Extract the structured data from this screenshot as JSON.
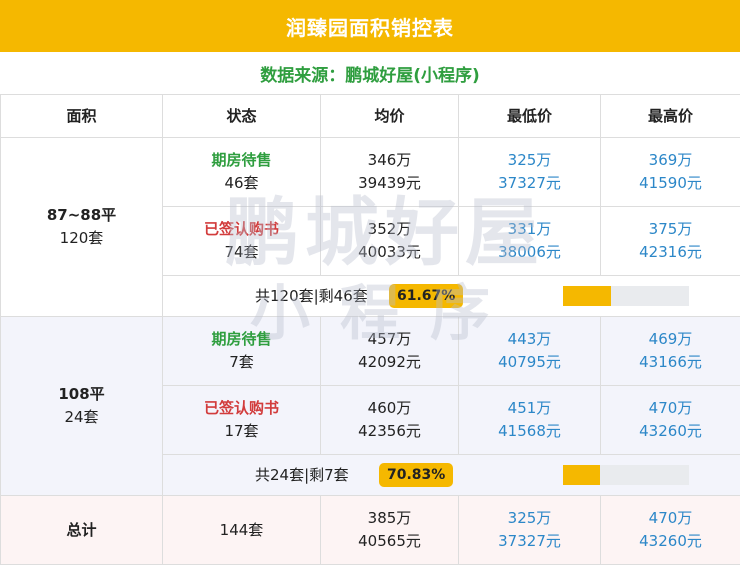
{
  "title": "润臻园面积销控表",
  "source": "数据来源：鹏城好屋(小程序)",
  "headers": [
    "面积",
    "状态",
    "均价",
    "最低价",
    "最高价"
  ],
  "groups": [
    {
      "area": "87~88平",
      "area_units": "120套",
      "rows": [
        {
          "status": "期房待售",
          "count": "46套",
          "avg_total": "346万",
          "avg_unit": "39439元",
          "min_total": "325万",
          "min_unit": "37327元",
          "max_total": "369万",
          "max_unit": "41590元"
        },
        {
          "status": "已签认购书",
          "count": "74套",
          "avg_total": "352万",
          "avg_unit": "40033元",
          "min_total": "331万",
          "min_unit": "38006元",
          "max_total": "375万",
          "max_unit": "42316元"
        }
      ],
      "summary": {
        "text": "共120套|剩46套",
        "percent_label": "61.67%",
        "fill_fraction": 0.3833
      }
    },
    {
      "area": "108平",
      "area_units": "24套",
      "rows": [
        {
          "status": "期房待售",
          "count": "7套",
          "avg_total": "457万",
          "avg_unit": "42092元",
          "min_total": "443万",
          "min_unit": "40795元",
          "max_total": "469万",
          "max_unit": "43166元"
        },
        {
          "status": "已签认购书",
          "count": "17套",
          "avg_total": "460万",
          "avg_unit": "42356元",
          "min_total": "451万",
          "min_unit": "41568元",
          "max_total": "470万",
          "max_unit": "43260元"
        }
      ],
      "summary": {
        "text": "共24套|剩7套",
        "percent_label": "70.83%",
        "fill_fraction": 0.2917
      }
    }
  ],
  "total": {
    "label": "总计",
    "count": "144套",
    "avg_total": "385万",
    "avg_unit": "40565元",
    "min_total": "325万",
    "min_unit": "37327元",
    "max_total": "470万",
    "max_unit": "43260元"
  },
  "watermark": {
    "line1": "鹏城好屋",
    "line2": "小程序"
  },
  "colors": {
    "accent": "#f5b800",
    "source_green": "#2f9e3f",
    "status_red": "#d23c3c",
    "price_blue": "#2c87c8"
  }
}
